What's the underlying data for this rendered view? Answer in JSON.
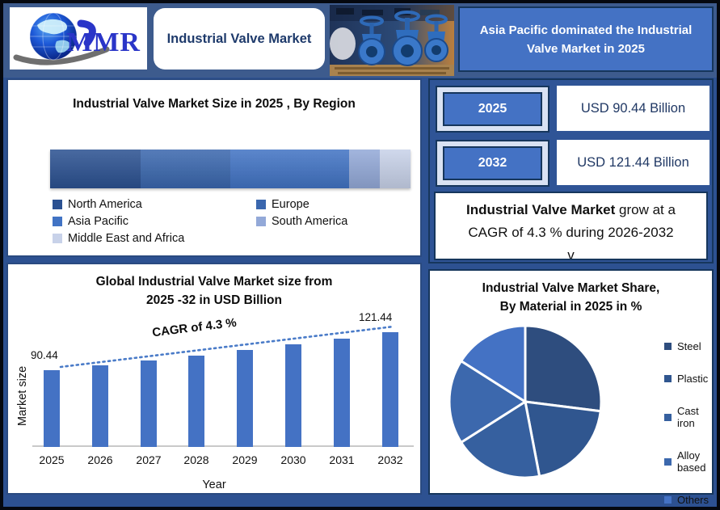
{
  "header": {
    "logo_text": "MMR",
    "title": "Industrial Valve Market",
    "banner_line1": "Asia Pacific dominated the Industrial",
    "banner_line2": "Valve Market in 2025"
  },
  "values_panel": {
    "rows": [
      {
        "year": "2025",
        "value": "USD 90.44 Billion"
      },
      {
        "year": "2032",
        "value": "USD 121.44 Billion"
      }
    ],
    "note_bold": "Industrial Valve Market",
    "note_rest": " grow at a",
    "note_line2": "CAGR of 4.3 % during 2026-2032",
    "note_line3": "v"
  },
  "chart_data": [
    {
      "id": "region-stacked-bar",
      "type": "bar",
      "variant": "horizontal-stacked",
      "title": "Industrial Valve Market Size in 2025 , By Region",
      "categories": [
        "North America",
        "Europe",
        "Asia Pacific",
        "South America",
        "Middle East and Africa"
      ],
      "values": [
        25,
        25,
        33,
        8.5,
        8.5
      ],
      "unit": "% share of bar length (estimated, no labels shown)",
      "colors": [
        "#2b5191",
        "#3a67ae",
        "#4173c4",
        "#93a9d8",
        "#c8d2e9"
      ],
      "legend_position": "below"
    },
    {
      "id": "market-size-by-year",
      "type": "bar",
      "title": "Global Industrial Valve Market size from 2025 -32 in USD Billion",
      "title_lines": [
        "Global Industrial Valve Market size from",
        "2025 -32 in USD Billion"
      ],
      "categories": [
        "2025",
        "2026",
        "2027",
        "2028",
        "2029",
        "2030",
        "2031",
        "2032"
      ],
      "values": [
        90.44,
        94.33,
        98.39,
        102.62,
        107.03,
        111.63,
        116.43,
        121.44
      ],
      "value_label_first": "90.44",
      "value_label_last": "121.44",
      "annotation": "CAGR of 4.3 %",
      "xlabel": "Year",
      "ylabel": "Market size",
      "bar_color": "#4472c4",
      "trendline": "dotted rising line above bar tops",
      "gridlines": false
    },
    {
      "id": "material-share-pie",
      "type": "pie",
      "title": "Industrial Valve Market  Share, By Material in 2025 in %",
      "title_lines": [
        "Industrial Valve Market  Share,",
        "By Material in 2025 in %"
      ],
      "categories": [
        "Steel",
        "Plastic",
        "Cast iron",
        "Alloy based",
        "Others"
      ],
      "values": [
        27,
        20,
        19,
        18,
        16
      ],
      "unit": "% (estimated from slice angles, no labels shown)",
      "colors": [
        "#2e4d7e",
        "#30568f",
        "#36609f",
        "#3c68ad",
        "#4472c4"
      ],
      "legend_position": "right"
    }
  ]
}
